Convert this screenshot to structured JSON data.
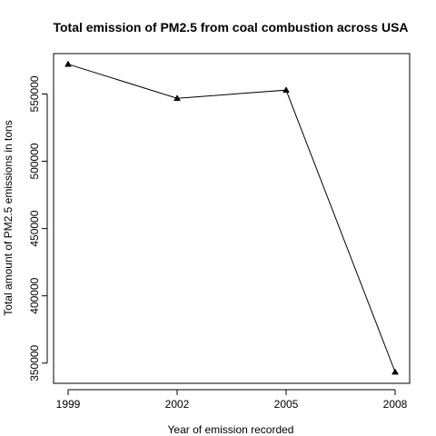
{
  "chart_data": {
    "type": "line",
    "title": "Total emission of PM2.5 from coal combustion across USA",
    "xlabel": "Year of emission recorded",
    "ylabel": "Total amount of PM2.5 emissions in tons",
    "x": [
      1999,
      2002,
      2005,
      2008
    ],
    "x_ticks": [
      "1999",
      "2002",
      "2005",
      "2008"
    ],
    "values": [
      572126,
      546789,
      552881,
      343432
    ],
    "y_ticks": [
      "350000",
      "400000",
      "450000",
      "500000",
      "550000"
    ],
    "xlim": [
      1998.6,
      2008.4
    ],
    "ylim": [
      335000,
      580000
    ],
    "marker": "triangle",
    "line_color": "#000000",
    "grid": false,
    "legend": "none"
  }
}
